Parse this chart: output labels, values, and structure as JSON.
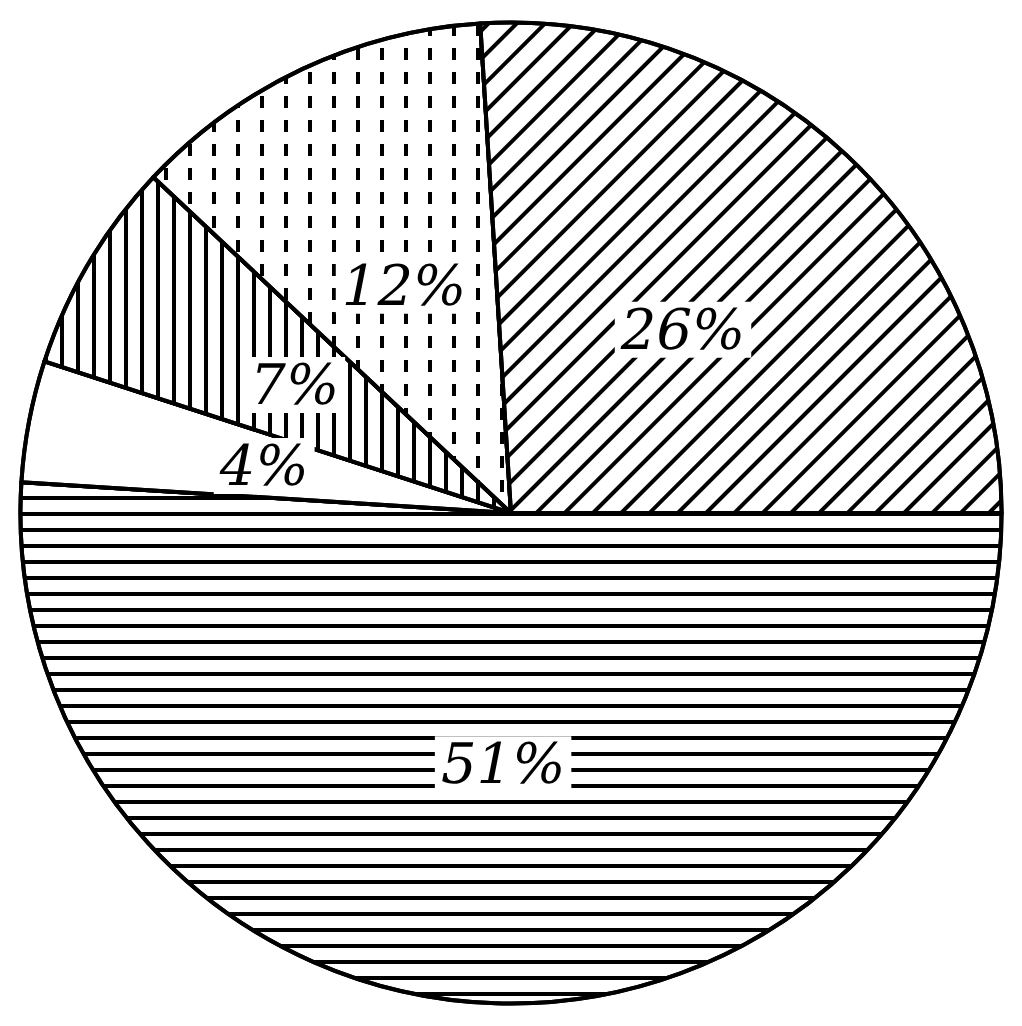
{
  "chart_data": {
    "type": "pie",
    "categories": [
      null,
      null,
      null,
      null,
      null
    ],
    "values": [
      51,
      4,
      7,
      12,
      26
    ],
    "colors": [
      "#ffffff",
      "#ffffff",
      "#ffffff",
      "#ffffff",
      "#ffffff"
    ],
    "value_labels": [
      "51%",
      "4%",
      "7%",
      "12%",
      "26%"
    ]
  }
}
